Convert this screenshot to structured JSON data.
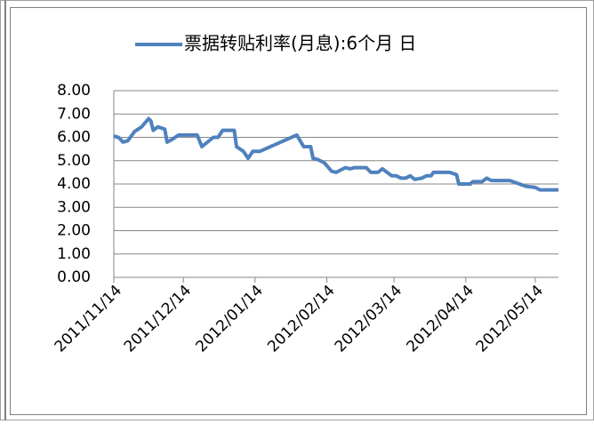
{
  "chart_data": {
    "type": "line",
    "x": [
      "2011/11/14",
      "2011/11/16",
      "2011/11/18",
      "2011/11/20",
      "2011/11/23",
      "2011/11/26",
      "2011/11/29",
      "2011/11/30",
      "2011/12/01",
      "2011/12/03",
      "2011/12/06",
      "2011/12/07",
      "2011/12/09",
      "2011/12/12",
      "2011/12/20",
      "2011/12/22",
      "2011/12/27",
      "2011/12/29",
      "2011/12/31",
      "2012/01/05",
      "2012/01/06",
      "2012/01/09",
      "2012/01/11",
      "2012/01/13",
      "2012/01/16",
      "2012/02/01",
      "2012/02/04",
      "2012/02/07",
      "2012/02/08",
      "2012/02/10",
      "2012/02/13",
      "2012/02/16",
      "2012/02/18",
      "2012/02/22",
      "2012/02/24",
      "2012/02/26",
      "2012/03/02",
      "2012/03/04",
      "2012/03/07",
      "2012/03/09",
      "2012/03/11",
      "2012/03/13",
      "2012/03/15",
      "2012/03/17",
      "2012/03/19",
      "2012/03/21",
      "2012/03/23",
      "2012/03/26",
      "2012/03/28",
      "2012/03/30",
      "2012/03/31",
      "2012/04/07",
      "2012/04/10",
      "2012/04/11",
      "2012/04/16",
      "2012/04/17",
      "2012/04/21",
      "2012/04/23",
      "2012/04/25",
      "2012/05/03",
      "2012/05/10",
      "2012/05/14",
      "2012/05/16",
      "2012/05/24"
    ],
    "series": [
      {
        "name": "票据转贴利率(月息):6个月 日",
        "color": "#4f81bd",
        "values": [
          6.05,
          6.0,
          5.8,
          5.85,
          6.25,
          6.45,
          6.8,
          6.7,
          6.3,
          6.45,
          6.35,
          5.8,
          5.9,
          6.1,
          6.1,
          5.6,
          6.0,
          6.0,
          6.3,
          6.3,
          5.6,
          5.4,
          5.1,
          5.4,
          5.4,
          6.1,
          5.6,
          5.6,
          5.1,
          5.05,
          4.9,
          4.55,
          4.5,
          4.7,
          4.65,
          4.7,
          4.7,
          4.5,
          4.5,
          4.65,
          4.5,
          4.35,
          4.35,
          4.25,
          4.25,
          4.35,
          4.2,
          4.25,
          4.35,
          4.35,
          4.5,
          4.5,
          4.4,
          4.0,
          4.0,
          4.1,
          4.1,
          4.25,
          4.15,
          4.15,
          3.9,
          3.85,
          3.75,
          3.75
        ]
      }
    ],
    "xlim": [
      "2011/11/14",
      "2012/05/24"
    ],
    "xticks": [
      "2011/11/14",
      "2011/12/14",
      "2012/01/14",
      "2012/02/14",
      "2012/03/14",
      "2012/04/14",
      "2012/05/14"
    ],
    "ylim": [
      0,
      8
    ],
    "yticks": [
      {
        "value": 0,
        "label": "0.00"
      },
      {
        "value": 1,
        "label": "1.00"
      },
      {
        "value": 2,
        "label": "2.00"
      },
      {
        "value": 3,
        "label": "3.00"
      },
      {
        "value": 4,
        "label": "4.00"
      },
      {
        "value": 5,
        "label": "5.00"
      },
      {
        "value": 6,
        "label": "6.00"
      },
      {
        "value": 7,
        "label": "7.00"
      },
      {
        "value": 8,
        "label": "8.00"
      }
    ],
    "grid": true,
    "legend": "top"
  }
}
